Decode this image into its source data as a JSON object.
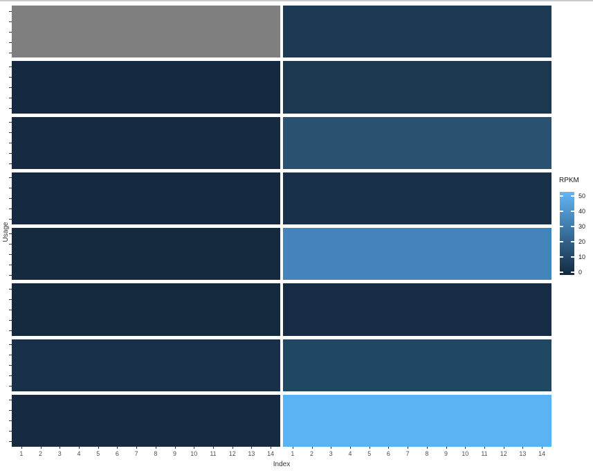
{
  "chart_data": {
    "type": "heatmap",
    "title": "",
    "xlabel": "Index",
    "ylabel": "Usage",
    "x_categories": [
      "1",
      "2",
      "3",
      "4",
      "5",
      "6",
      "7",
      "8",
      "9",
      "10",
      "11",
      "12",
      "13",
      "14"
    ],
    "y_axis": {
      "tick_labels_visible": false,
      "minor_ticks_per_row": 5
    },
    "grid": false,
    "legend": {
      "title": "RPKM",
      "ticks": [
        "50",
        "40",
        "30",
        "20",
        "10",
        "0"
      ],
      "min": 0,
      "max": 50,
      "color_min": "#12293f",
      "color_max": "#63b6f7",
      "na_color": "#7f7f7f",
      "position": "right"
    },
    "panels": [
      {
        "name": "panel-1",
        "rows": [
          {
            "rpkm": null,
            "color": "#7f7f7f"
          },
          {
            "rpkm": 0.5,
            "color": "#152940"
          },
          {
            "rpkm": 1,
            "color": "#162b42"
          },
          {
            "rpkm": 0.5,
            "color": "#152a40"
          },
          {
            "rpkm": 0,
            "color": "#15293f"
          },
          {
            "rpkm": 0,
            "color": "#15293f"
          },
          {
            "rpkm": 2.5,
            "color": "#18304a"
          },
          {
            "rpkm": 1,
            "color": "#162a41"
          }
        ]
      },
      {
        "name": "panel-2",
        "rows": [
          {
            "rpkm": 5,
            "color": "#1c3a54"
          },
          {
            "rpkm": 4.5,
            "color": "#1b3850"
          },
          {
            "rpkm": 14,
            "color": "#2a5170"
          },
          {
            "rpkm": 2.5,
            "color": "#18304a"
          },
          {
            "rpkm": 32,
            "color": "#4484bb"
          },
          {
            "rpkm": 1,
            "color": "#162c44"
          },
          {
            "rpkm": 10,
            "color": "#214862"
          },
          {
            "rpkm": 47,
            "color": "#5bb3f4"
          }
        ]
      }
    ]
  }
}
